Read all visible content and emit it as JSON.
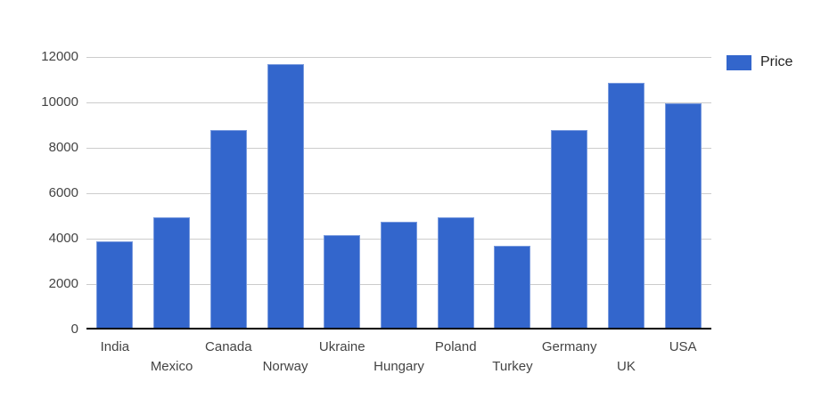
{
  "chart_data": {
    "type": "bar",
    "title": "",
    "xlabel": "",
    "ylabel": "",
    "categories": [
      "India",
      "Mexico",
      "Canada",
      "Norway",
      "Ukraine",
      "Hungary",
      "Poland",
      "Turkey",
      "Germany",
      "UK",
      "USA"
    ],
    "series": [
      {
        "name": "Price",
        "color": "#3366CC",
        "values": [
          3900,
          4950,
          8800,
          11700,
          4150,
          4750,
          4950,
          3700,
          8800,
          10850,
          9950
        ]
      }
    ],
    "ylim": [
      0,
      12000
    ],
    "yticks": [
      0,
      2000,
      4000,
      6000,
      8000,
      10000,
      12000
    ],
    "grid": "horizontal-only",
    "legend_position": "top-right",
    "x_label_layout": "staggered-two-rows"
  },
  "colors": {
    "bar": "#3366CC",
    "gridline": "#CCCCCC",
    "axis_line": "#000000",
    "tick_label": "#444444",
    "legend_text": "#222222",
    "background": "#FFFFFF"
  }
}
